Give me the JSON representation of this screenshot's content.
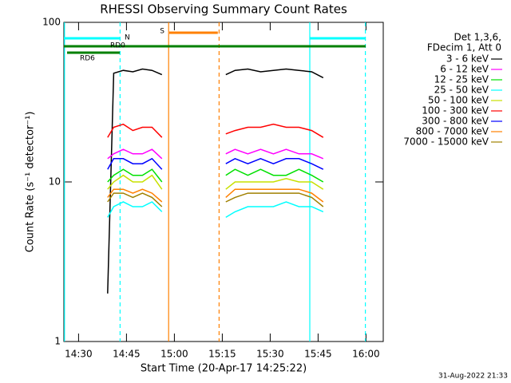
{
  "chart_data": {
    "type": "line",
    "title": "RHESSI Observing Summary Count Rates",
    "x_label": "Start Time (20-Apr-17 14:25:22)",
    "y_label": "Count Rate (s⁻¹ detector⁻¹)",
    "footer": "31-Aug-2022 21:33",
    "legend_header": [
      "Det 1,3,6,",
      "FDecim 1, Att 0"
    ],
    "log_y": true,
    "xlim": [
      865.4,
      965.4
    ],
    "ylim": [
      1,
      100
    ],
    "xticks": [
      {
        "value": 870,
        "label": "14:30"
      },
      {
        "value": 885,
        "label": "14:45"
      },
      {
        "value": 900,
        "label": "15:00"
      },
      {
        "value": 915,
        "label": "15:15"
      },
      {
        "value": 930,
        "label": "15:30"
      },
      {
        "value": 945,
        "label": "15:45"
      },
      {
        "value": 960,
        "label": "16:00"
      }
    ],
    "yticks": [
      1,
      10,
      100
    ],
    "x": [
      879.1,
      881,
      884,
      887,
      890,
      893,
      896.1,
      906,
      916.1,
      919,
      923,
      927,
      931,
      935,
      939,
      943,
      946.6
    ],
    "series": [
      {
        "name": "3 - 6 keV",
        "color": "#000000",
        "values": [
          2,
          48,
          50,
          49,
          51,
          50,
          47,
          null,
          47,
          50,
          51,
          49,
          50,
          51,
          50,
          49,
          45
        ]
      },
      {
        "name": "6 - 12 keV",
        "color": "#ff00ff",
        "values": [
          14,
          15,
          16,
          15,
          15,
          16,
          14,
          null,
          15,
          16,
          15,
          16,
          15,
          16,
          15,
          15,
          14
        ]
      },
      {
        "name": "12 - 25 keV",
        "color": "#00e000",
        "values": [
          10,
          11,
          12,
          11,
          11,
          12,
          10,
          null,
          11,
          12,
          11,
          12,
          11,
          11,
          12,
          11,
          10
        ]
      },
      {
        "name": "25 - 50 keV",
        "color": "#00ffff",
        "values": [
          6,
          7,
          7.5,
          7,
          7,
          7.5,
          6.5,
          null,
          6,
          6.5,
          7,
          7,
          7,
          7.5,
          7,
          7,
          6.5
        ]
      },
      {
        "name": "50 - 100 keV",
        "color": "#c8e000",
        "values": [
          9,
          10,
          11,
          10,
          10,
          11,
          9,
          null,
          9,
          10,
          10,
          10,
          10,
          10.5,
          10,
          10,
          9
        ]
      },
      {
        "name": "100 - 300 keV",
        "color": "#ff0000",
        "values": [
          19,
          22,
          23,
          21,
          22,
          22,
          19,
          null,
          20,
          21,
          22,
          22,
          23,
          22,
          22,
          21,
          19
        ]
      },
      {
        "name": "300 - 800 keV",
        "color": "#0000ff",
        "values": [
          12,
          14,
          14,
          13,
          13,
          14,
          12,
          null,
          13,
          14,
          13,
          14,
          13,
          14,
          14,
          13,
          12
        ]
      },
      {
        "name": "800 - 7000 keV",
        "color": "#ff8000",
        "values": [
          8,
          9,
          9,
          8.5,
          9,
          8.5,
          7.5,
          null,
          8,
          9,
          9,
          9,
          9,
          9,
          9,
          8.5,
          7.5
        ]
      },
      {
        "name": "7000 - 15000 keV",
        "color": "#a08000",
        "values": [
          7.5,
          8.5,
          8.5,
          8,
          8.5,
          8,
          7,
          null,
          7.5,
          8,
          8.5,
          8.5,
          8.5,
          8.5,
          8.5,
          8,
          7
        ]
      }
    ],
    "markers": [
      {
        "x": 865.6,
        "color": "#00ffff",
        "style": "solid"
      },
      {
        "x": 883,
        "color": "#00ffff",
        "style": "dashed"
      },
      {
        "x": 942.4,
        "color": "#00ffff",
        "style": "solid"
      },
      {
        "x": 959.8,
        "color": "#00ffff",
        "style": "dashed"
      },
      {
        "x": 898.2,
        "color": "#ff8000",
        "style": "solid"
      },
      {
        "x": 914,
        "color": "#ff8000",
        "style": "dashed"
      }
    ],
    "flags": [
      {
        "label": "N",
        "color": "#00ffff",
        "segments": [
          [
            865.4,
            882.9
          ],
          [
            942.4,
            959.9
          ]
        ]
      },
      {
        "label": "S",
        "color": "#ff8000",
        "segments": [
          [
            898.4,
            913.6
          ]
        ]
      },
      {
        "label": "RD0",
        "color": "#008000",
        "segments": [
          [
            865.4,
            959.9
          ]
        ]
      },
      {
        "label": "RD6",
        "color": "#008000",
        "segments": [
          [
            866.4,
            882.9
          ]
        ]
      }
    ]
  }
}
